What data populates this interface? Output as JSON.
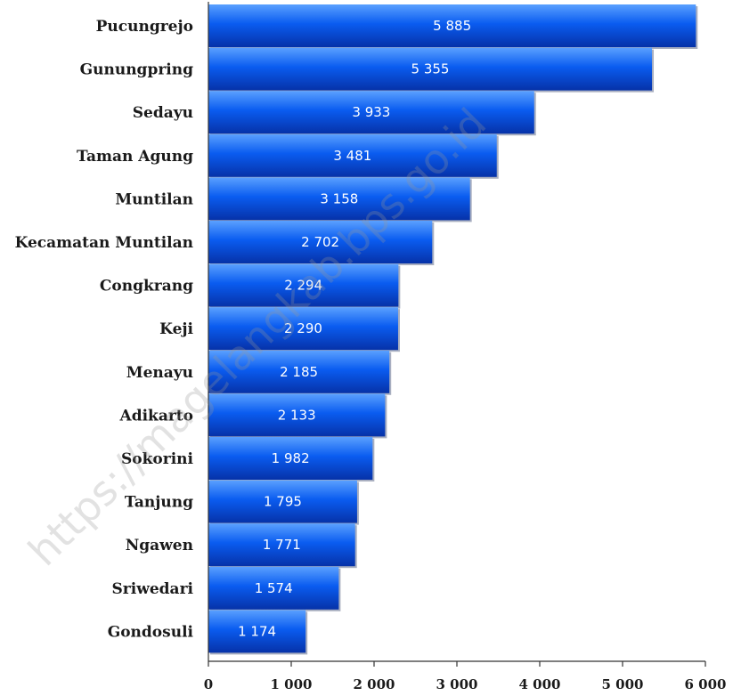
{
  "watermark": "https://magelangkab.bps.go.id",
  "colors": {
    "bar_light": "#5aa0ff",
    "bar_mid": "#0a5cf0",
    "bar_dark": "#0632a8",
    "axis": "#333333"
  },
  "chart_data": {
    "type": "bar",
    "orientation": "horizontal",
    "title": "",
    "xlabel": "",
    "ylabel": "",
    "categories": [
      "Pucungrejo",
      "Gunungpring",
      "Sedayu",
      "Taman Agung",
      "Muntilan",
      "Kecamatan Muntilan",
      "Congkrang",
      "Keji",
      "Menayu",
      "Adikarto",
      "Sokorini",
      "Tanjung",
      "Ngawen",
      "Sriwedari",
      "Gondosuli"
    ],
    "values": [
      5885,
      5355,
      3933,
      3481,
      3158,
      2702,
      2294,
      2290,
      2185,
      2133,
      1982,
      1795,
      1771,
      1574,
      1174
    ],
    "value_labels": [
      "5 885",
      "5 355",
      "3 933",
      "3 481",
      "3 158",
      "2 702",
      "2 294",
      "2 290",
      "2 185",
      "2 133",
      "1 982",
      "1 795",
      "1 771",
      "1 574",
      "1 174"
    ],
    "xlim": [
      0,
      6000
    ],
    "xticks": [
      0,
      1000,
      2000,
      3000,
      4000,
      5000,
      6000
    ],
    "xtick_labels": [
      "0",
      "1 000",
      "2 000",
      "3 000",
      "4 000",
      "5 000",
      "6 000"
    ],
    "grid": false,
    "legend": "none"
  }
}
